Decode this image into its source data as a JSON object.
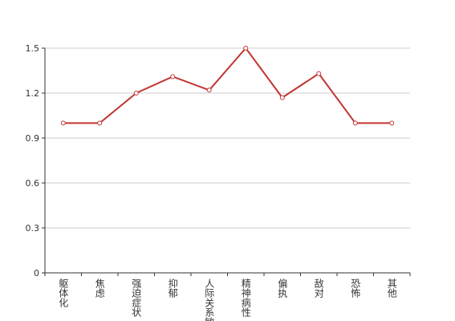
{
  "chart_data": {
    "type": "line",
    "categories": [
      "躯体化",
      "焦虑",
      "强迫症状",
      "抑郁",
      "人际关系敏感",
      "精神病性",
      "偏执",
      "敌对",
      "恐怖",
      "其他"
    ],
    "values": [
      1.0,
      1.0,
      1.2,
      1.31,
      1.22,
      1.5,
      1.17,
      1.33,
      1.0,
      1.0
    ],
    "color": "#c23531",
    "ylim": [
      0,
      1.5
    ],
    "yticks": [
      0,
      0.3,
      0.6,
      0.9,
      1.2,
      1.5
    ],
    "grid": true
  }
}
